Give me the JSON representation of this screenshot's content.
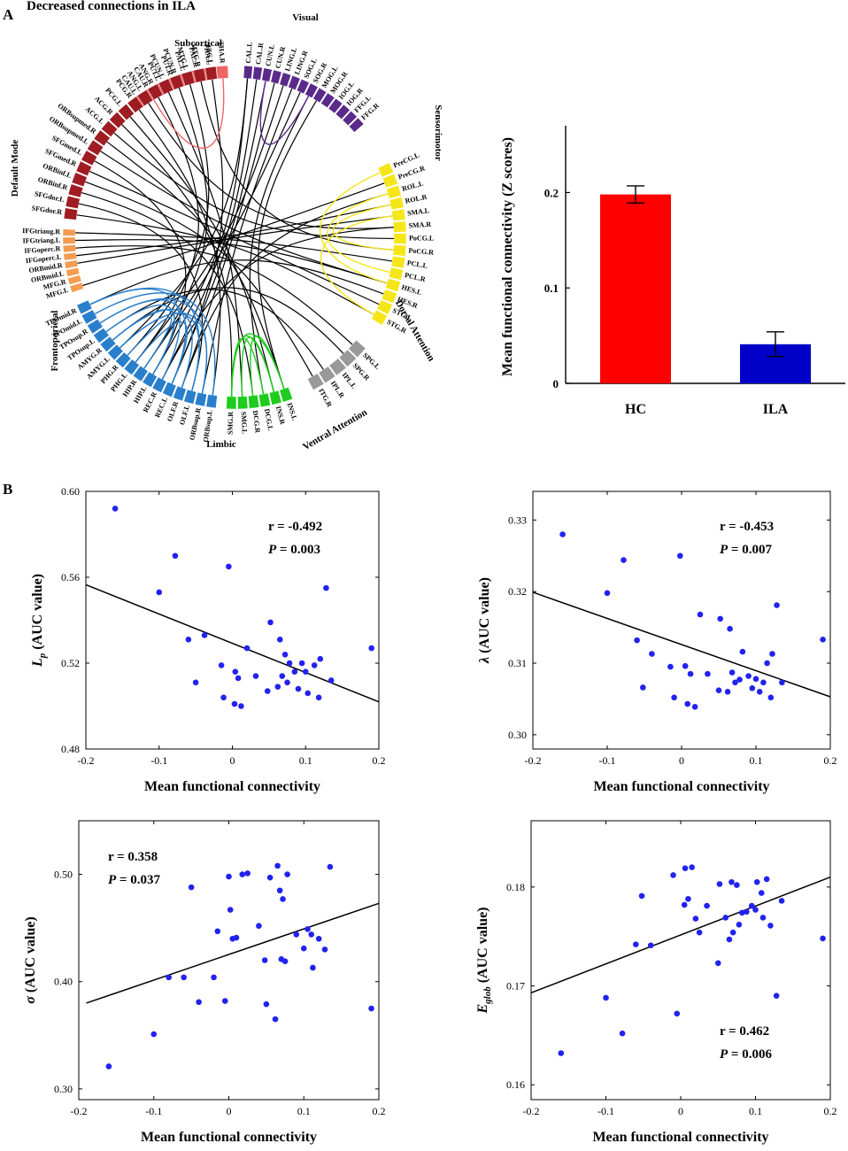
{
  "panel_a": {
    "label": "A",
    "title": "Decreased connections in ILA",
    "circos": {
      "groups": [
        {
          "name": "Subcortical",
          "color": "#f06464",
          "nodes": [
            "CAU.L",
            "CAU.R",
            "PUT.L",
            "PUT.R",
            "PAL.L",
            "PAL.R",
            "THA.L",
            "THA.R"
          ]
        },
        {
          "name": "Visual",
          "color": "#5a2a8a",
          "nodes": [
            "CAL.L",
            "CAL.R",
            "CUN.L",
            "CUN.R",
            "LING.L",
            "LING.R",
            "SOG.L",
            "SOG.R",
            "MOG.L",
            "MOG.R",
            "IOG.L",
            "IOG.R",
            "FFG.L",
            "FFG.R"
          ]
        },
        {
          "name": "Sensorimotor",
          "color": "#f5e619",
          "nodes": [
            "PreCG.L",
            "PreCG.R",
            "ROL.L",
            "ROL.R",
            "SMA.L",
            "SMA.R",
            "PoCG.L",
            "PoCG.R",
            "PCL.L",
            "PCL.R",
            "HES.L",
            "HES.R",
            "STG.L",
            "STG.R"
          ]
        },
        {
          "name": "Dorsal Attention",
          "color": "#999999",
          "nodes": [
            "SPG.L",
            "SPG.R",
            "IPL.L",
            "IPL.R",
            "ITG.R"
          ]
        },
        {
          "name": "Ventral Attention",
          "color": "#1ecc1e",
          "nodes": [
            "INS.L",
            "INS.R",
            "DCG.L",
            "DCG.R",
            "SMG.L",
            "SMG.R"
          ]
        },
        {
          "name": "Limbic",
          "color": "#2a7fcc",
          "nodes": [
            "ORBsup.L",
            "ORBsup.R",
            "OLF.L",
            "OLF.R",
            "REC.L",
            "REC.R",
            "HIP.L",
            "HIP.R",
            "PHG.L",
            "PHG.R",
            "AMYG.L",
            "AMYG.R",
            "TPOsup.L",
            "TPOsup.R",
            "TPOmid.L",
            "TPOmid.R"
          ]
        },
        {
          "name": "Frontoparietal",
          "color": "#f39c52",
          "nodes": [
            "MFG.L",
            "MFG.R",
            "ORBmid.L",
            "ORBmid.R",
            "IFGoperc.L",
            "IFGoperc.R",
            "IFGtriang.L",
            "IFGtriang.R"
          ]
        },
        {
          "name": "Default Mode",
          "color": "#9e1c22",
          "nodes": [
            "SFGdor.R",
            "SFGdor.L",
            "ORBinf.R",
            "ORBinf.L",
            "SFGmed.R",
            "SFGmed.L",
            "ORBsupmed.L",
            "ORBsupmed.R",
            "ACG.L",
            "ACG.R",
            "PCG.L",
            "PCG.R",
            "ANG.L",
            "ANG.R",
            "PCUN.L",
            "PCUN.R",
            "MTG.L",
            "MTG.R",
            "ITG.L"
          ]
        }
      ]
    }
  },
  "chart_data": [
    {
      "type": "bar",
      "ylabel": "Mean functional connectivity (Z scores)",
      "categories": [
        "HC",
        "ILA"
      ],
      "values": [
        0.198,
        0.041
      ],
      "errors": [
        0.009,
        0.013
      ],
      "colors": [
        "#ff0000",
        "#0000c8"
      ],
      "ylim": [
        0,
        0.27
      ],
      "yticks": [
        "0",
        "0.1",
        "0.2"
      ]
    },
    {
      "type": "scatter",
      "xlabel": "Mean functional connectivity",
      "ylabel_main": "L",
      "ylabel_sub": "p",
      "ylabel_rest": " (AUC value)",
      "xlim": [
        -0.2,
        0.2
      ],
      "ylim": [
        0.48,
        0.6
      ],
      "xticks": [
        -0.2,
        -0.1,
        0,
        0.1,
        0.2
      ],
      "xtick_labels": [
        "-0.2",
        "-0.1",
        "0",
        "0.1",
        "0.2"
      ],
      "yticks": [
        0.48,
        0.52,
        0.56,
        0.6
      ],
      "ytick_labels": [
        "0.48",
        "0.52",
        "0.56",
        "0.60"
      ],
      "r_text": "r = -0.492",
      "p_label": "P",
      "p_value": " = 0.003",
      "stats_pos": "top-right",
      "fit": {
        "x0": -0.2,
        "y0": 0.5565,
        "x1": 0.2,
        "y1": 0.502
      },
      "points": [
        [
          -0.16,
          0.592
        ],
        [
          -0.1,
          0.553
        ],
        [
          -0.078,
          0.57
        ],
        [
          -0.06,
          0.531
        ],
        [
          -0.05,
          0.511
        ],
        [
          -0.038,
          0.533
        ],
        [
          -0.015,
          0.519
        ],
        [
          -0.012,
          0.504
        ],
        [
          -0.005,
          0.565
        ],
        [
          0.003,
          0.501
        ],
        [
          0.004,
          0.516
        ],
        [
          0.008,
          0.513
        ],
        [
          0.012,
          0.5
        ],
        [
          0.02,
          0.527
        ],
        [
          0.032,
          0.514
        ],
        [
          0.048,
          0.507
        ],
        [
          0.052,
          0.539
        ],
        [
          0.062,
          0.509
        ],
        [
          0.065,
          0.531
        ],
        [
          0.068,
          0.514
        ],
        [
          0.072,
          0.524
        ],
        [
          0.075,
          0.511
        ],
        [
          0.078,
          0.52
        ],
        [
          0.085,
          0.516
        ],
        [
          0.09,
          0.508
        ],
        [
          0.095,
          0.52
        ],
        [
          0.1,
          0.516
        ],
        [
          0.103,
          0.506
        ],
        [
          0.112,
          0.519
        ],
        [
          0.118,
          0.504
        ],
        [
          0.12,
          0.522
        ],
        [
          0.128,
          0.555
        ],
        [
          0.135,
          0.512
        ],
        [
          0.19,
          0.527
        ]
      ]
    },
    {
      "type": "scatter",
      "xlabel": "Mean functional connectivity",
      "ylabel_main": "λ",
      "ylabel_sub": "",
      "ylabel_rest": " (AUC value)",
      "xlim": [
        -0.2,
        0.2
      ],
      "ylim": [
        0.298,
        0.334
      ],
      "xticks": [
        -0.2,
        -0.1,
        0,
        0.1,
        0.2
      ],
      "xtick_labels": [
        "-0.2",
        "-0.1",
        "0",
        "0.1",
        "0.2"
      ],
      "yticks": [
        0.3,
        0.31,
        0.32,
        0.33
      ],
      "ytick_labels": [
        "0.30",
        "0.31",
        "0.32",
        "0.33"
      ],
      "r_text": "r = -0.453",
      "p_label": "P",
      "p_value": " = 0.007",
      "stats_pos": "top-right",
      "fit": {
        "x0": -0.2,
        "y0": 0.3199,
        "x1": 0.2,
        "y1": 0.3053
      },
      "points": [
        [
          -0.16,
          0.328
        ],
        [
          -0.1,
          0.3198
        ],
        [
          -0.078,
          0.3244
        ],
        [
          -0.06,
          0.3132
        ],
        [
          -0.052,
          0.3066
        ],
        [
          -0.04,
          0.3113
        ],
        [
          -0.015,
          0.3095
        ],
        [
          -0.01,
          0.3052
        ],
        [
          -0.002,
          0.325
        ],
        [
          0.005,
          0.3096
        ],
        [
          0.008,
          0.3043
        ],
        [
          0.012,
          0.3085
        ],
        [
          0.018,
          0.3039
        ],
        [
          0.025,
          0.3168
        ],
        [
          0.035,
          0.3085
        ],
        [
          0.05,
          0.3062
        ],
        [
          0.052,
          0.3162
        ],
        [
          0.062,
          0.306
        ],
        [
          0.065,
          0.3148
        ],
        [
          0.068,
          0.3087
        ],
        [
          0.072,
          0.3073
        ],
        [
          0.078,
          0.3077
        ],
        [
          0.082,
          0.3116
        ],
        [
          0.09,
          0.3082
        ],
        [
          0.095,
          0.3065
        ],
        [
          0.1,
          0.3078
        ],
        [
          0.105,
          0.306
        ],
        [
          0.11,
          0.3073
        ],
        [
          0.115,
          0.31
        ],
        [
          0.12,
          0.3052
        ],
        [
          0.122,
          0.3113
        ],
        [
          0.128,
          0.3181
        ],
        [
          0.135,
          0.3073
        ],
        [
          0.19,
          0.3133
        ]
      ]
    },
    {
      "type": "scatter",
      "xlabel": "Mean functional connectivity",
      "ylabel_main": "σ",
      "ylabel_sub": "",
      "ylabel_rest": " (AUC value)",
      "xlim": [
        -0.2,
        0.2
      ],
      "ylim": [
        0.29,
        0.55
      ],
      "xticks": [
        -0.2,
        -0.1,
        0,
        0.1,
        0.2
      ],
      "xtick_labels": [
        "-0.2",
        "-0.1",
        "0",
        "0.1",
        "0.2"
      ],
      "yticks": [
        0.3,
        0.4,
        0.5
      ],
      "ytick_labels": [
        "0.30",
        "0.40",
        "0.50"
      ],
      "r_text": "r = 0.358",
      "p_label": "P",
      "p_value": " = 0.037",
      "stats_pos": "top-left",
      "fit": {
        "x0": -0.19,
        "y0": 0.38,
        "x1": 0.2,
        "y1": 0.473
      },
      "points": [
        [
          -0.16,
          0.321
        ],
        [
          -0.1,
          0.351
        ],
        [
          -0.08,
          0.404
        ],
        [
          -0.06,
          0.404
        ],
        [
          -0.05,
          0.488
        ],
        [
          -0.04,
          0.381
        ],
        [
          -0.02,
          0.404
        ],
        [
          -0.015,
          0.447
        ],
        [
          -0.005,
          0.382
        ],
        [
          0,
          0.498
        ],
        [
          0.002,
          0.467
        ],
        [
          0.005,
          0.44
        ],
        [
          0.01,
          0.441
        ],
        [
          0.018,
          0.5
        ],
        [
          0.025,
          0.501
        ],
        [
          0.04,
          0.452
        ],
        [
          0.048,
          0.42
        ],
        [
          0.05,
          0.379
        ],
        [
          0.055,
          0.497
        ],
        [
          0.062,
          0.365
        ],
        [
          0.065,
          0.508
        ],
        [
          0.068,
          0.485
        ],
        [
          0.07,
          0.421
        ],
        [
          0.072,
          0.477
        ],
        [
          0.075,
          0.419
        ],
        [
          0.078,
          0.5
        ],
        [
          0.09,
          0.444
        ],
        [
          0.1,
          0.431
        ],
        [
          0.105,
          0.449
        ],
        [
          0.11,
          0.444
        ],
        [
          0.112,
          0.413
        ],
        [
          0.12,
          0.44
        ],
        [
          0.128,
          0.43
        ],
        [
          0.135,
          0.507
        ],
        [
          0.19,
          0.375
        ]
      ]
    },
    {
      "type": "scatter",
      "xlabel": "Mean functional connectivity",
      "ylabel_main": "E",
      "ylabel_sub": "glob",
      "ylabel_rest": " (AUC value)",
      "xlim": [
        -0.2,
        0.2
      ],
      "ylim": [
        0.1585,
        0.1867
      ],
      "xticks": [
        -0.2,
        -0.1,
        0,
        0.1,
        0.2
      ],
      "xtick_labels": [
        "-0.2",
        "-0.1",
        "0",
        "0.1",
        "0.2"
      ],
      "yticks": [
        0.16,
        0.17,
        0.18
      ],
      "ytick_labels": [
        "0.16",
        "0.17",
        "0.18"
      ],
      "r_text": "r = 0.462",
      "p_label": "P",
      "p_value": " = 0.006",
      "stats_pos": "bottom-right",
      "fit": {
        "x0": -0.2,
        "y0": 0.1693,
        "x1": 0.2,
        "y1": 0.181
      },
      "points": [
        [
          -0.16,
          0.1632
        ],
        [
          -0.1,
          0.1688
        ],
        [
          -0.078,
          0.1652
        ],
        [
          -0.06,
          0.1742
        ],
        [
          -0.052,
          0.1791
        ],
        [
          -0.04,
          0.1741
        ],
        [
          -0.01,
          0.1812
        ],
        [
          -0.005,
          0.1672
        ],
        [
          0.005,
          0.1782
        ],
        [
          0.006,
          0.1819
        ],
        [
          0.01,
          0.1788
        ],
        [
          0.015,
          0.182
        ],
        [
          0.02,
          0.1768
        ],
        [
          0.025,
          0.1754
        ],
        [
          0.035,
          0.1781
        ],
        [
          0.05,
          0.1723
        ],
        [
          0.052,
          0.1803
        ],
        [
          0.06,
          0.1769
        ],
        [
          0.065,
          0.1747
        ],
        [
          0.068,
          0.1805
        ],
        [
          0.07,
          0.1754
        ],
        [
          0.075,
          0.1802
        ],
        [
          0.078,
          0.1762
        ],
        [
          0.082,
          0.1774
        ],
        [
          0.088,
          0.1775
        ],
        [
          0.095,
          0.1781
        ],
        [
          0.1,
          0.1777
        ],
        [
          0.102,
          0.1805
        ],
        [
          0.108,
          0.1794
        ],
        [
          0.11,
          0.1769
        ],
        [
          0.115,
          0.1808
        ],
        [
          0.12,
          0.1761
        ],
        [
          0.128,
          0.169
        ],
        [
          0.135,
          0.1786
        ],
        [
          0.19,
          0.1748
        ]
      ]
    }
  ],
  "panel_b": {
    "label": "B"
  }
}
